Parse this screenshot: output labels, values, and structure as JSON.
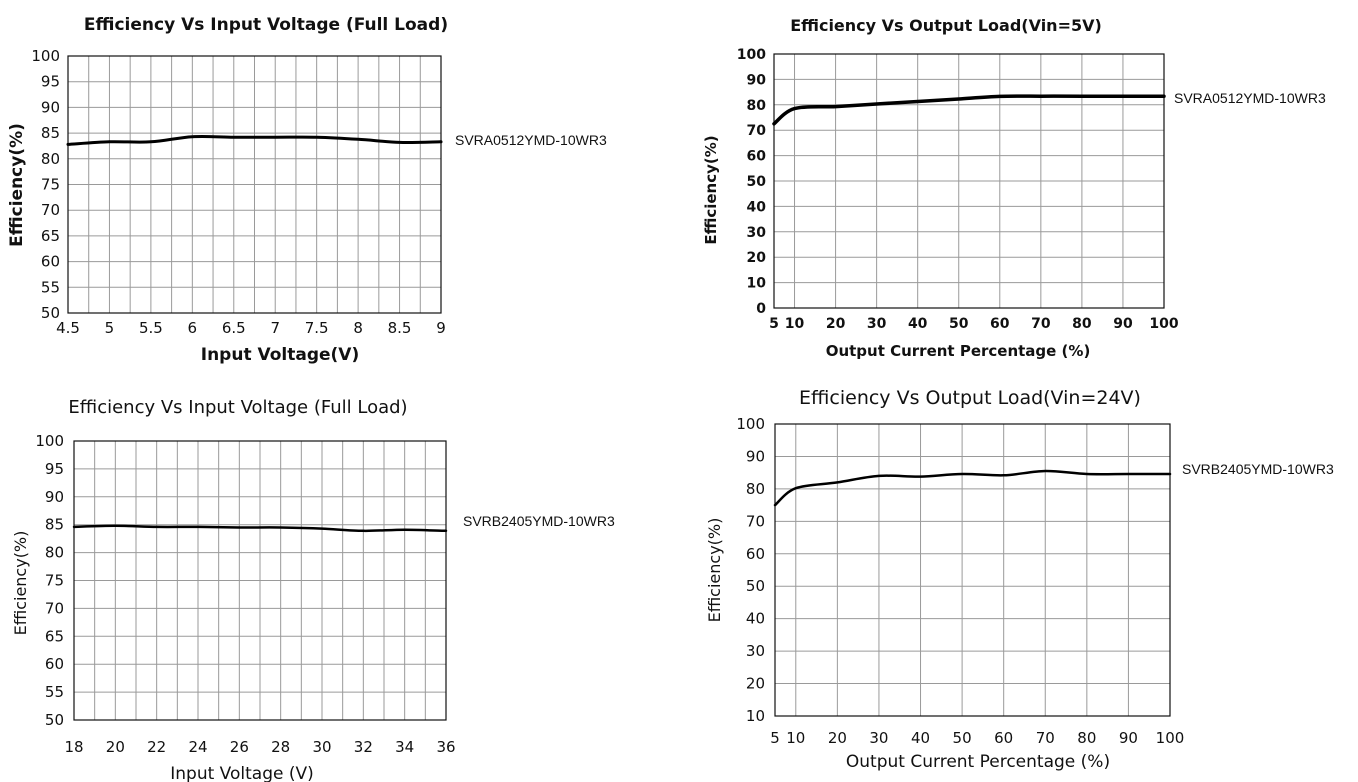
{
  "chart_data": [
    {
      "type": "line",
      "title": "Efficiency Vs Input Voltage (Full Load)",
      "xlabel": "Input Voltage(V)",
      "ylabel": "Efficiency(%)",
      "xlim": [
        4.5,
        9
      ],
      "ylim": [
        50,
        100
      ],
      "xticks": [
        "4.5",
        "5",
        "5.5",
        "6",
        "6.5",
        "7",
        "7.5",
        "8",
        "8.5",
        "9"
      ],
      "yticks": [
        "50",
        "55",
        "60",
        "65",
        "70",
        "75",
        "80",
        "85",
        "90",
        "95",
        "100"
      ],
      "grid": true,
      "series": [
        {
          "name": "SVRA0512YMD-10WR3",
          "x": [
            4.5,
            5,
            5.5,
            6,
            6.5,
            7,
            7.5,
            8,
            8.5,
            9
          ],
          "y": [
            82.8,
            83.3,
            83.3,
            84.3,
            84.2,
            84.2,
            84.2,
            83.8,
            83.2,
            83.3
          ]
        }
      ]
    },
    {
      "type": "line",
      "title": "Efficiency Vs Output Load(Vin=5V)",
      "xlabel": "Output Current Percentage (%)",
      "ylabel": "Efficiency(%)",
      "xlim": [
        5,
        100
      ],
      "ylim": [
        0,
        100
      ],
      "xticks": [
        "5",
        "10",
        "20",
        "30",
        "40",
        "50",
        "60",
        "70",
        "80",
        "90",
        "100"
      ],
      "yticks": [
        "0",
        "10",
        "20",
        "30",
        "40",
        "50",
        "60",
        "70",
        "80",
        "90",
        "100"
      ],
      "grid": true,
      "series": [
        {
          "name": "SVRA0512YMD-10WR3",
          "x": [
            5,
            10,
            20,
            30,
            40,
            50,
            60,
            70,
            80,
            90,
            100
          ],
          "y": [
            72.5,
            78.5,
            79.3,
            80.3,
            81.3,
            82.3,
            83.3,
            83.4,
            83.4,
            83.4,
            83.4
          ]
        }
      ]
    },
    {
      "type": "line",
      "title": "Efficiency Vs Input Voltage (Full Load)",
      "xlabel": "Input Voltage (V)",
      "ylabel": "Efficiency(%)",
      "xlim": [
        18,
        36
      ],
      "ylim": [
        50,
        100
      ],
      "xticks": [
        "18",
        "20",
        "22",
        "24",
        "26",
        "28",
        "30",
        "32",
        "34",
        "36"
      ],
      "yticks": [
        "50",
        "55",
        "60",
        "65",
        "70",
        "75",
        "80",
        "85",
        "90",
        "95",
        "100"
      ],
      "grid": true,
      "series": [
        {
          "name": "SVRB2405YMD-10WR3",
          "x": [
            18,
            20,
            22,
            24,
            26,
            28,
            30,
            32,
            34,
            36
          ],
          "y": [
            84.6,
            84.8,
            84.6,
            84.6,
            84.5,
            84.5,
            84.3,
            83.9,
            84.1,
            83.9
          ]
        }
      ]
    },
    {
      "type": "line",
      "title": "Efficiency Vs Output Load(Vin=24V)",
      "xlabel": "Output Current Percentage (%)",
      "ylabel": "Efficiency(%)",
      "xlim": [
        5,
        100
      ],
      "ylim": [
        10,
        100
      ],
      "xticks": [
        "5",
        "10",
        "20",
        "30",
        "40",
        "50",
        "60",
        "70",
        "80",
        "90",
        "100"
      ],
      "yticks": [
        "10",
        "20",
        "30",
        "40",
        "50",
        "60",
        "70",
        "80",
        "90",
        "100"
      ],
      "grid": true,
      "series": [
        {
          "name": "SVRB2405YMD-10WR3",
          "x": [
            5,
            10,
            20,
            30,
            40,
            50,
            60,
            70,
            80,
            90,
            100
          ],
          "y": [
            75,
            80.2,
            82,
            84,
            83.8,
            84.6,
            84.2,
            85.5,
            84.6,
            84.6,
            84.6
          ]
        }
      ]
    }
  ]
}
